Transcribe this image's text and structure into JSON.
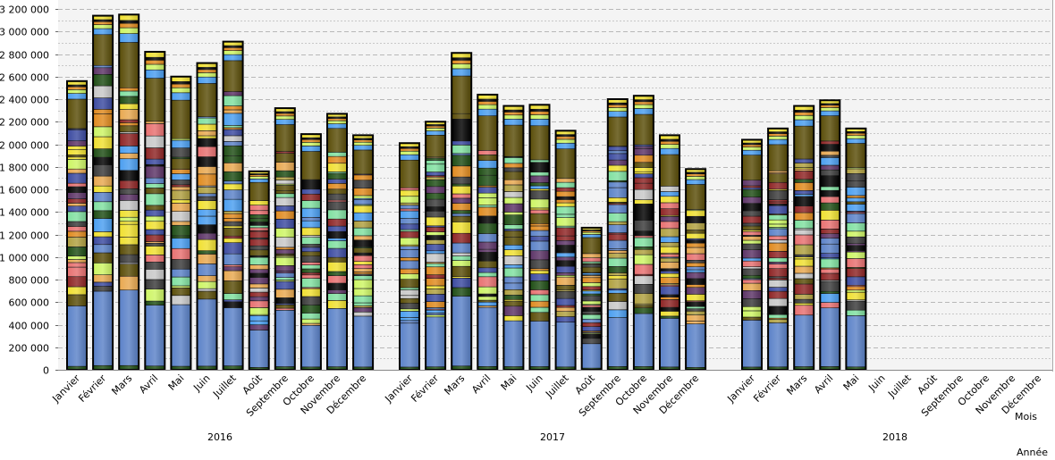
{
  "chart_data": {
    "type": "bar",
    "stacked": true,
    "title": "",
    "xlabel": "Mois",
    "xlabel_outer": "Année",
    "ylabel": "",
    "ylim": [
      0,
      3200000
    ],
    "y_ticks": [
      0,
      200000,
      400000,
      600000,
      800000,
      1000000,
      1200000,
      1400000,
      1600000,
      1800000,
      2000000,
      2200000,
      2400000,
      2600000,
      2800000,
      3000000,
      3200000
    ],
    "y_tick_labels": [
      "0",
      "200 000",
      "400 000",
      "600 000",
      "800 000",
      "1 000 000",
      "1 200 000",
      "1 400 000",
      "1 600 000",
      "1 800 000",
      "2 000 000",
      "2 200 000",
      "2 400 000",
      "2 600 000",
      "2 800 000",
      "3 000 000",
      "3 200 000"
    ],
    "grid": true,
    "legend": "none",
    "years": [
      {
        "year": "2016",
        "months": [
          "Janvier",
          "Février",
          "Mars",
          "Avril",
          "Mai",
          "Juin",
          "Juillet",
          "Août",
          "Septembre",
          "Octobre",
          "Novembre",
          "Décembre"
        ],
        "totals": [
          2560000,
          3140000,
          3150000,
          2820000,
          2600000,
          2720000,
          2910000,
          1760000,
          2320000,
          2090000,
          2270000,
          2080000
        ]
      },
      {
        "year": "2017",
        "months": [
          "Janvier",
          "Février",
          "Mars",
          "Avril",
          "Mai",
          "Juin",
          "Juillet",
          "Août",
          "Septembre",
          "Octobre",
          "Novembre",
          "Décembre"
        ],
        "totals": [
          2010000,
          2200000,
          2810000,
          2440000,
          2340000,
          2350000,
          2120000,
          1260000,
          2400000,
          2430000,
          2080000,
          1780000
        ]
      },
      {
        "year": "2018",
        "months": [
          "Janvier",
          "Février",
          "Mars",
          "Avril",
          "Mai",
          "Juin",
          "Juillet",
          "Août",
          "Septembre",
          "Octobre",
          "Novembre",
          "Décembre"
        ],
        "totals": [
          2040000,
          2140000,
          2340000,
          2390000,
          2140000,
          null,
          null,
          null,
          null,
          null,
          null,
          null
        ]
      }
    ],
    "segment_palette": [
      "#5b82c8",
      "#e08a1e",
      "#8e2424",
      "#1e4d14",
      "#3a3a3a",
      "#c8c8c8",
      "#5c3366",
      "#3b4aa0",
      "#4a9ef0",
      "#cdf564",
      "#5a4d08",
      "#f0e030",
      "#e87070",
      "#e8a850",
      "#b0a040",
      "#80e0a0",
      "#000000"
    ]
  }
}
